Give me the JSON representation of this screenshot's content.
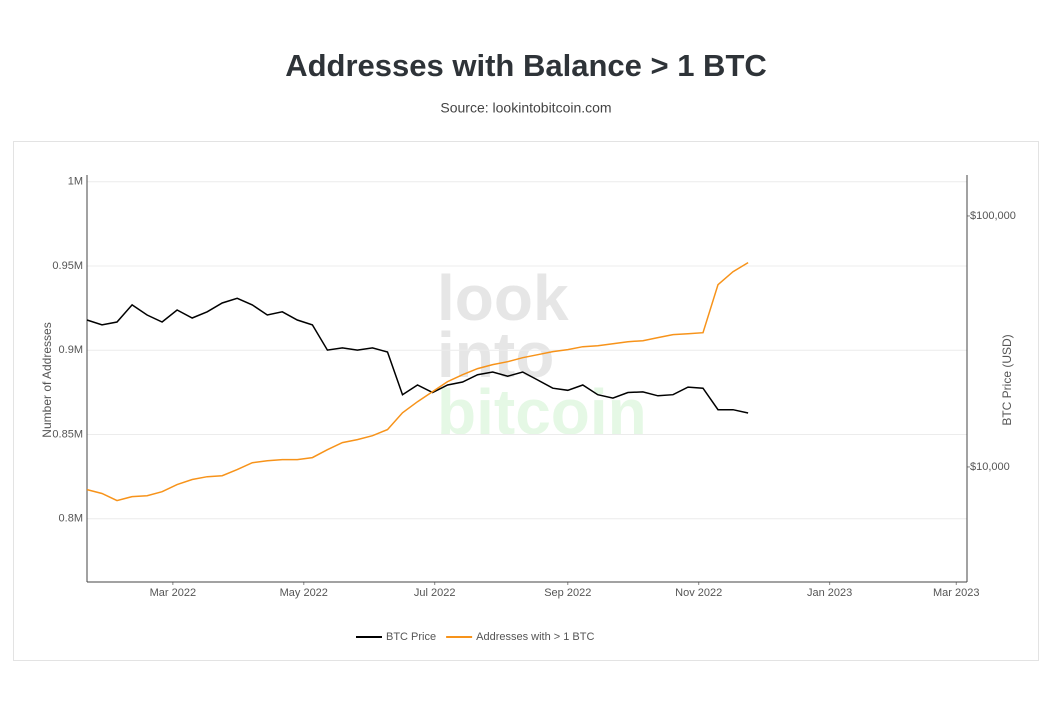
{
  "chart_data": {
    "type": "line",
    "title": "Addresses with Balance > 1 BTC",
    "subtitle": "Source: lookintobitcoin.com",
    "watermark": [
      "look",
      "into",
      "bitcoin"
    ],
    "y_label": "Number of Addresses",
    "y2_label": "BTC Price (USD)",
    "x": [
      "2022-01-20",
      "2022-01-27",
      "2022-02-03",
      "2022-02-10",
      "2022-02-17",
      "2022-02-24",
      "2022-03-03",
      "2022-03-10",
      "2022-03-17",
      "2022-03-24",
      "2022-03-31",
      "2022-04-07",
      "2022-04-14",
      "2022-04-21",
      "2022-04-28",
      "2022-05-05",
      "2022-05-12",
      "2022-05-19",
      "2022-05-26",
      "2022-06-02",
      "2022-06-09",
      "2022-06-16",
      "2022-06-23",
      "2022-06-30",
      "2022-07-07",
      "2022-07-14",
      "2022-07-21",
      "2022-07-28",
      "2022-08-04",
      "2022-08-11",
      "2022-08-18",
      "2022-08-25",
      "2022-09-01",
      "2022-09-08",
      "2022-09-15",
      "2022-09-22",
      "2022-09-29",
      "2022-10-06",
      "2022-10-13",
      "2022-10-20",
      "2022-10-27",
      "2022-11-03",
      "2022-11-10",
      "2022-11-17",
      "2022-11-24"
    ],
    "series": [
      {
        "name": "BTC Price",
        "color": "#000000",
        "axis": "y2",
        "values": [
          38500,
          36800,
          37800,
          44200,
          40300,
          37800,
          42200,
          39200,
          41500,
          45000,
          47000,
          44200,
          40300,
          41500,
          38500,
          36800,
          29200,
          29800,
          29200,
          29800,
          28700,
          19400,
          21200,
          19800,
          21200,
          21800,
          23300,
          23900,
          23000,
          23900,
          22200,
          20600,
          20200,
          21200,
          19400,
          18800,
          19800,
          19900,
          19200,
          19400,
          20800,
          20600,
          16900,
          16900,
          16400
        ]
      },
      {
        "name": "Addresses with > 1 BTC",
        "color": "#f7931a",
        "axis": "y",
        "values": [
          817300,
          815000,
          810800,
          813200,
          813700,
          816100,
          820300,
          823300,
          825000,
          825600,
          829200,
          833300,
          834500,
          835100,
          835100,
          836300,
          841000,
          845200,
          847000,
          849300,
          852900,
          862900,
          869500,
          875500,
          881400,
          885500,
          889100,
          891500,
          893200,
          895600,
          897400,
          899200,
          900400,
          902100,
          902700,
          903900,
          905100,
          905700,
          907500,
          909300,
          909800,
          910400,
          938900,
          946600,
          952000
        ]
      }
    ],
    "xlim": [
      "2022-01-20",
      "2023-03-06"
    ],
    "xticks": [
      {
        "value": "2022-03-01",
        "label": "Mar 2022"
      },
      {
        "value": "2022-05-01",
        "label": "May 2022"
      },
      {
        "value": "2022-07-01",
        "label": "Jul 2022"
      },
      {
        "value": "2022-09-01",
        "label": "Sep 2022"
      },
      {
        "value": "2022-11-01",
        "label": "Nov 2022"
      },
      {
        "value": "2023-01-01",
        "label": "Jan 2023"
      },
      {
        "value": "2023-03-01",
        "label": "Mar 2023"
      }
    ],
    "ylim": [
      762500,
      1004000
    ],
    "yticks": [
      {
        "value": 800000,
        "label": "0.8M"
      },
      {
        "value": 850000,
        "label": "0.85M"
      },
      {
        "value": 900000,
        "label": "0.9M"
      },
      {
        "value": 950000,
        "label": "0.95M"
      },
      {
        "value": 1000000,
        "label": "1M"
      }
    ],
    "y2lim": [
      3480,
      145600
    ],
    "y2ticks": [
      {
        "value": 10000,
        "label": "$10,000"
      },
      {
        "value": 100000,
        "label": "$100,000"
      }
    ],
    "y2_log": true,
    "grid": true,
    "legend": "bottom"
  }
}
